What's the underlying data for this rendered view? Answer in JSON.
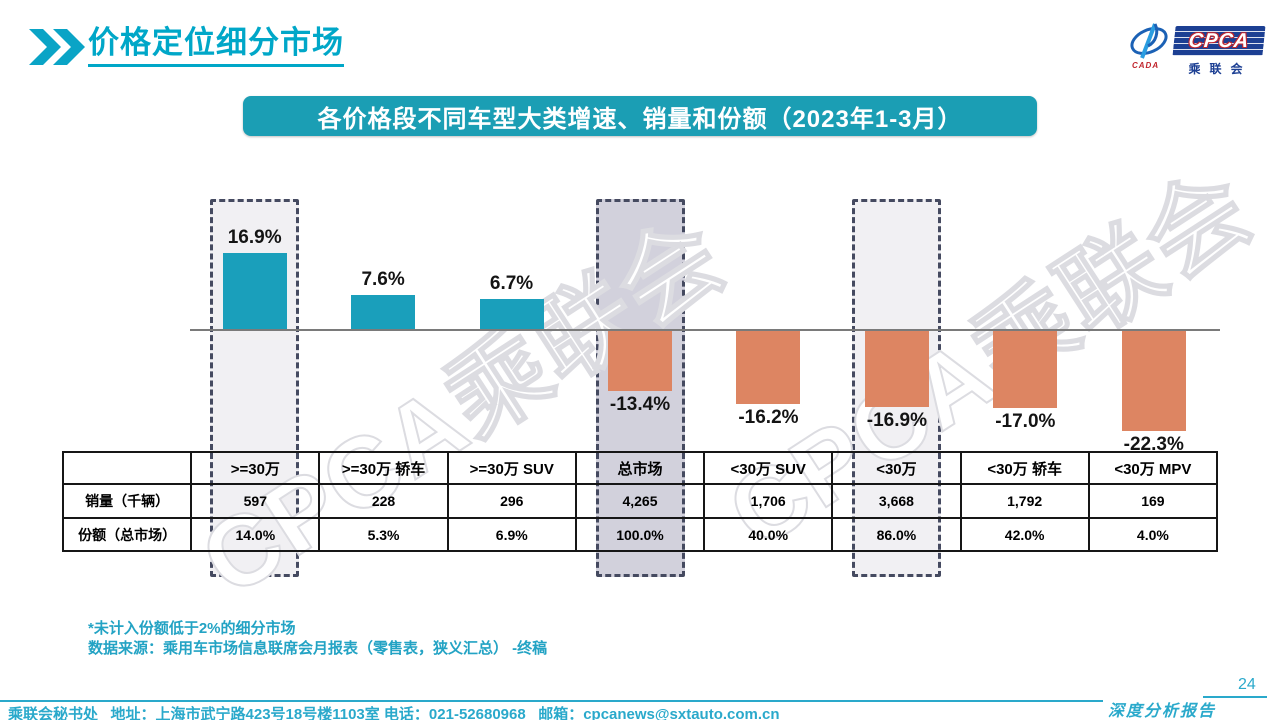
{
  "header": {
    "title": "价格定位细分市场"
  },
  "logo": {
    "cpca": "CPCA",
    "cada": "CADA",
    "name_cn": "乘联会"
  },
  "banner": {
    "title": "各价格段不同车型大类增速、销量和份额（2023年1-3月）"
  },
  "watermark": {
    "text": "CPCA乘联会"
  },
  "chart_data": {
    "type": "bar",
    "title": "各价格段不同车型大类增速、销量和份额（2023年1-3月）",
    "categories": [
      ">=30万",
      ">=30万 轿车",
      ">=30万 SUV",
      "总市场",
      "<30万 SUV",
      "<30万",
      "<30万 轿车",
      "<30万 MPV"
    ],
    "values": [
      16.9,
      7.6,
      6.7,
      -13.4,
      -16.2,
      -16.9,
      -17.0,
      -22.3
    ],
    "labels": [
      "16.9%",
      "7.6%",
      "6.7%",
      "-13.4%",
      "-16.2%",
      "-16.9%",
      "-17.0%",
      "-22.3%"
    ],
    "positive_color": "#1a9fbb",
    "negative_color": "#dd8562",
    "highlights": [
      {
        "category": ">=30万",
        "fill": "#f1f0f3"
      },
      {
        "category": "总市场",
        "fill": "#d2d1dc"
      },
      {
        "category": "<30万",
        "fill": "#f1f0f3"
      }
    ],
    "table": {
      "row_headers": [
        "销量（千辆）",
        "份额（总市场）"
      ],
      "rows": [
        [
          "597",
          "228",
          "296",
          "4,265",
          "1,706",
          "3,668",
          "1,792",
          "169"
        ],
        [
          "14.0%",
          "5.3%",
          "6.9%",
          "100.0%",
          "40.0%",
          "86.0%",
          "42.0%",
          "4.0%"
        ]
      ]
    }
  },
  "notes": [
    "*未计入份额低于2%的细分市场",
    "数据来源：乘用车市场信息联席会月报表（零售表，狭义汇总） -终稿"
  ],
  "footer": {
    "contact": "乘联会秘书处   地址：上海市武宁路423号18号楼1103室 电话：021-52680968   邮箱：cpcanews@sxtauto.com.cn",
    "report_label": "深度分析报告",
    "page_number": "24"
  }
}
